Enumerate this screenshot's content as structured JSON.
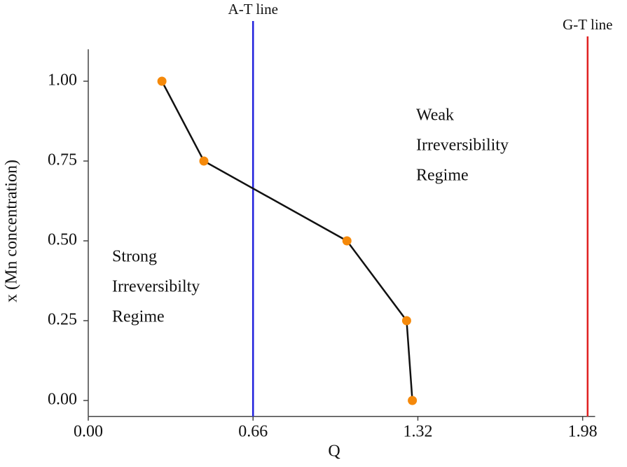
{
  "chart_data": {
    "type": "line",
    "x_label": "Q",
    "y_label": "x (Mn concentration)",
    "xlim": [
      0,
      2.03
    ],
    "ylim": [
      -0.05,
      1.1
    ],
    "xticks": [
      {
        "value": 0,
        "label": "0.00"
      },
      0.66,
      1.32,
      1.98
    ],
    "yticks": [
      {
        "value": 0,
        "label": "0.00"
      },
      0.25,
      {
        "value": 0.5,
        "label": "0.50"
      },
      0.75,
      {
        "value": 1,
        "label": "1.00"
      }
    ],
    "grid": false,
    "series": [
      {
        "color": "#f5890a",
        "line_color": "#111111",
        "x": [
          0.295,
          0.463,
          1.036,
          1.275,
          1.298
        ],
        "values": [
          1.0,
          0.75,
          0.5,
          0.25,
          0.0
        ]
      }
    ],
    "reference_lines": [
      {
        "name": "A-T line",
        "x": 0.66,
        "color": "#2222dd"
      },
      {
        "name": "G-T line",
        "x": 2.0,
        "color": "#e02020"
      }
    ],
    "annotations": [
      {
        "lines": [
          "Strong",
          "Irreversibilty",
          "Regime"
        ]
      },
      {
        "lines": [
          "Weak",
          "Irreversibility",
          "Regime"
        ]
      }
    ]
  }
}
